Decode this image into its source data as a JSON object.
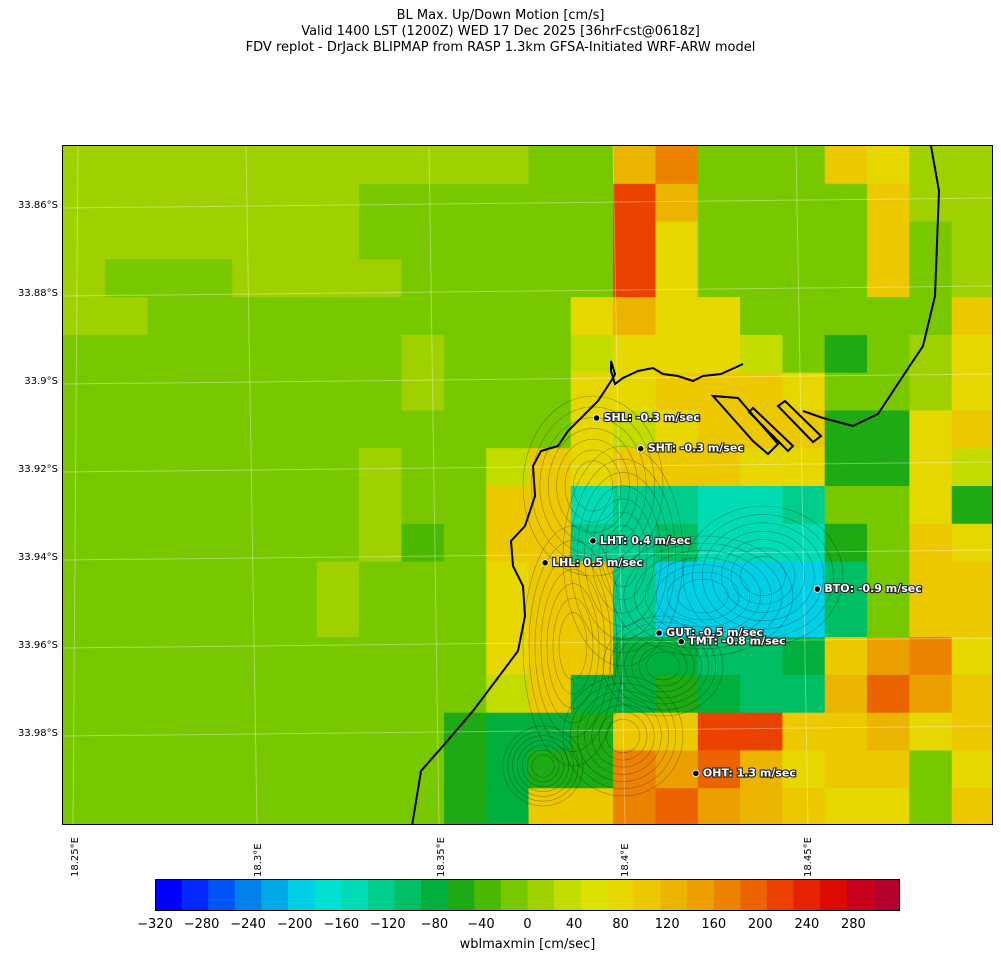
{
  "header": {
    "line1": "BL Max. Up/Down Motion [cm/s]",
    "line2": "Valid 1400 LST (1200Z) WED 17 Dec 2025 [36hrFcst@0618z]",
    "line3": "FDV replot - DrJack BLIPMAP from RASP 1.3km GFSA-Initiated WRF-ARW model"
  },
  "axes": {
    "lat_labels": [
      "33.86°S",
      "33.88°S",
      "33.9°S",
      "33.92°S",
      "33.94°S",
      "33.96°S",
      "33.98°S"
    ],
    "lon_labels": [
      "18.25°E",
      "18.3°E",
      "18.35°E",
      "18.4°E",
      "18.45°E"
    ]
  },
  "stations": [
    {
      "code": "SHL",
      "label": "SHL: -0.3 m/sec",
      "value": -0.3,
      "lat": -33.908,
      "lon": 18.392
    },
    {
      "code": "SHT",
      "label": "SHT: -0.3 m/sec",
      "value": -0.3,
      "lat": -33.915,
      "lon": 18.404
    },
    {
      "code": "LHT",
      "label": "LHT: 0.4 m/sec",
      "value": 0.4,
      "lat": -33.936,
      "lon": 18.391
    },
    {
      "code": "LHL",
      "label": "LHL: 0.5 m/sec",
      "value": 0.5,
      "lat": -33.941,
      "lon": 18.378
    },
    {
      "code": "BTO",
      "label": "BTO: -0.9 m/sec",
      "value": -0.9,
      "lat": -33.947,
      "lon": 18.452
    },
    {
      "code": "GUT",
      "label": "GUT: -0.5 m/sec",
      "value": -0.5,
      "lat": -33.957,
      "lon": 18.409
    },
    {
      "code": "TMT",
      "label": "TMT: -0.8 m/sec",
      "value": -0.8,
      "lat": -33.959,
      "lon": 18.415
    },
    {
      "code": "OHT",
      "label": "OHT: 1.3 m/sec",
      "value": 1.3,
      "lat": -33.989,
      "lon": 18.419
    }
  ],
  "colorbar": {
    "label": "wblmaxmin [cm/sec]",
    "ticks": [
      "−320",
      "−280",
      "−240",
      "−200",
      "−160",
      "−120",
      "−80",
      "−40",
      "0",
      "40",
      "80",
      "120",
      "160",
      "200",
      "240",
      "280"
    ],
    "colors": [
      "#0000ff",
      "#0028ff",
      "#0055f5",
      "#0080eb",
      "#00aae6",
      "#00cfe6",
      "#00e1d2",
      "#00dcb4",
      "#00cd8c",
      "#00be64",
      "#00af3c",
      "#1eaa14",
      "#4bb900",
      "#78c800",
      "#a0d200",
      "#c3dc00",
      "#dce100",
      "#e6d700",
      "#ebc800",
      "#ebb400",
      "#eba000",
      "#eb8200",
      "#eb6400",
      "#eb4100",
      "#e62300",
      "#dc0a00",
      "#c8001e",
      "#b4002d"
    ]
  }
}
